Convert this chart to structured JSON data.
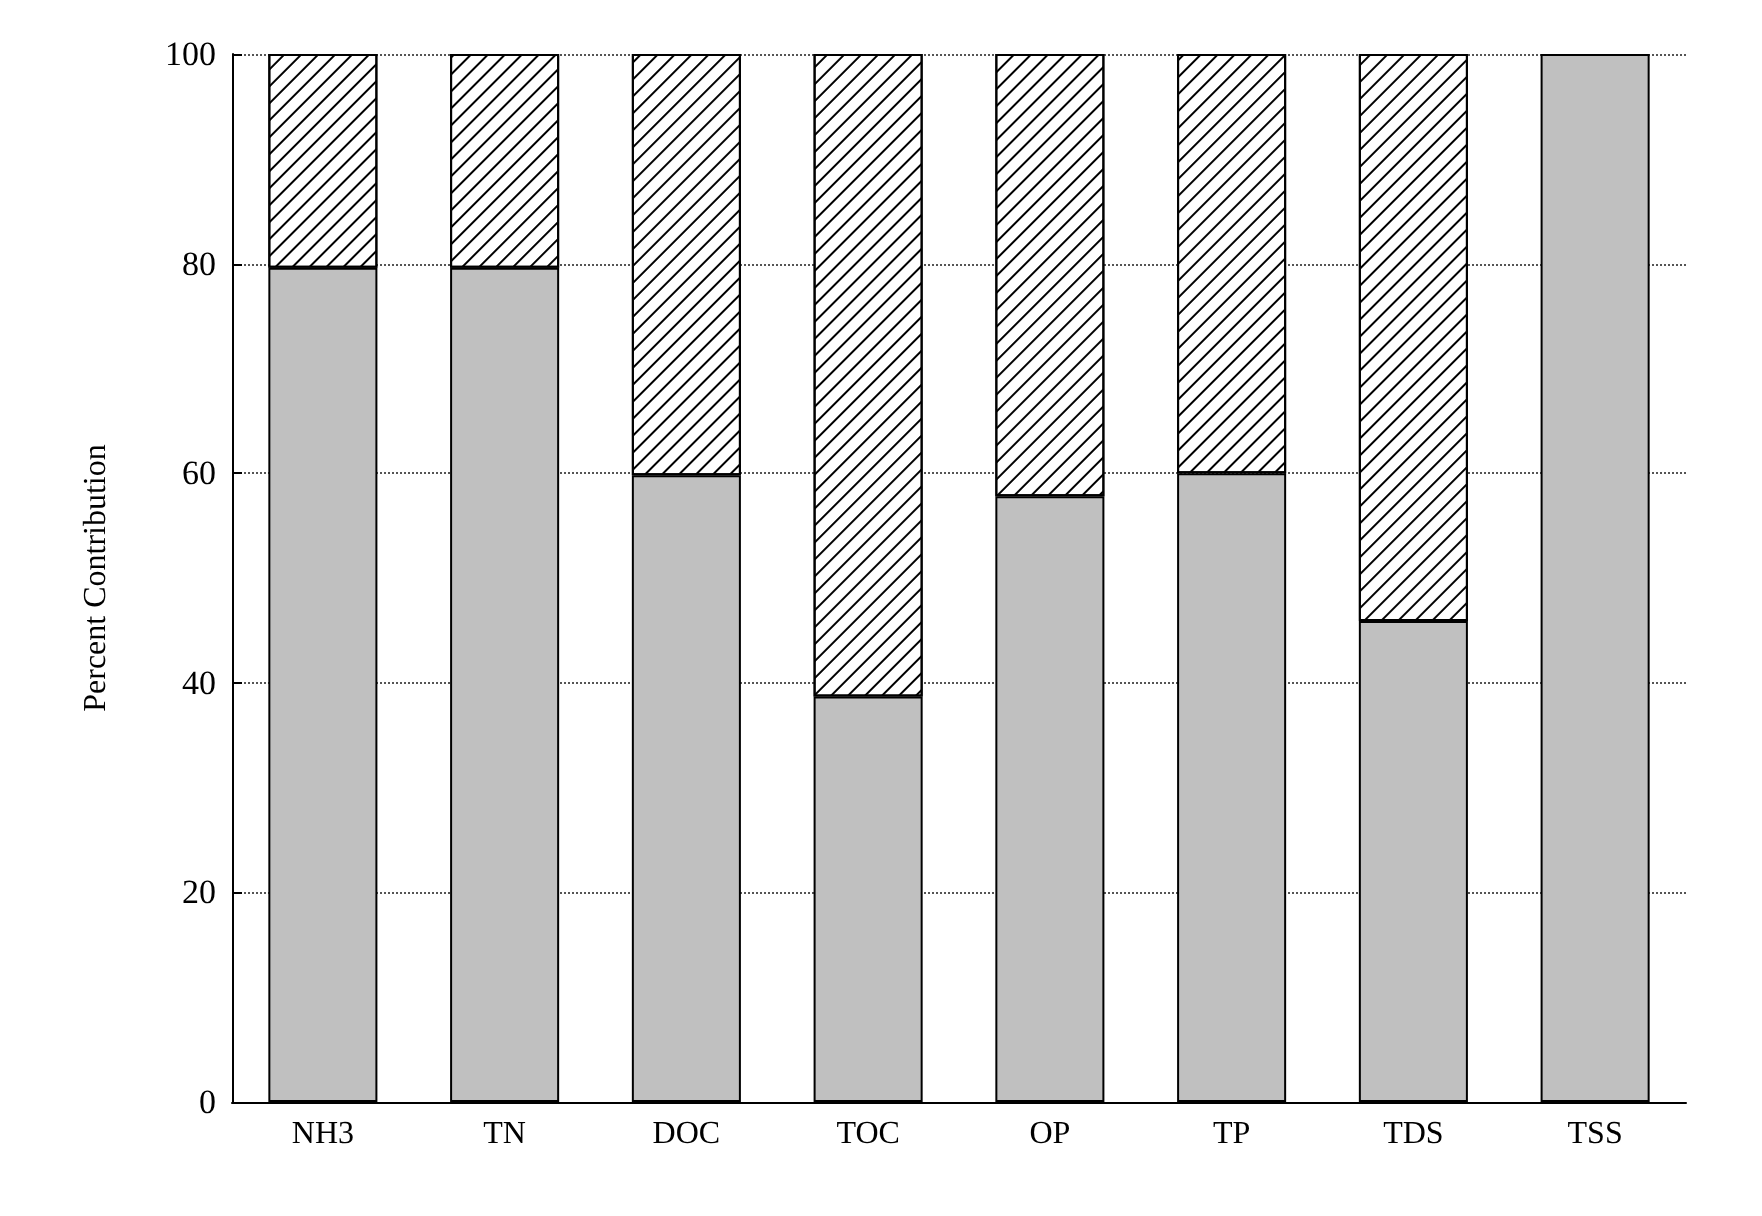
{
  "chart_data": {
    "type": "bar",
    "stacked": true,
    "ylabel": "Percent Contribution",
    "categories": [
      "NH3",
      "TN",
      "DOC",
      "TOC",
      "OP",
      "TP",
      "TDS",
      "TSS"
    ],
    "series": [
      {
        "color": "#c0c0c0",
        "values": [
          79.6,
          79.6,
          59.8,
          38.7,
          57.8,
          60,
          45.9,
          100
        ]
      },
      {
        "color": "#ffffff",
        "values": [
          20.4,
          20.4,
          40.2,
          61.3,
          42.2,
          40,
          54.1,
          null
        ]
      }
    ],
    "ylim": [
      0,
      100
    ],
    "yticks": [
      0,
      20,
      40,
      60,
      80,
      100
    ],
    "grid": "y"
  }
}
